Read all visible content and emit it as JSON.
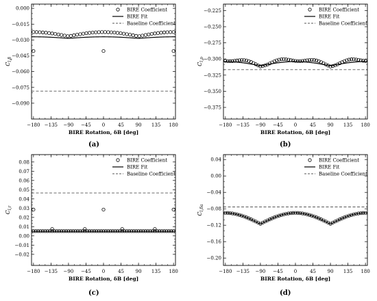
{
  "legend_entries": [
    "BIRE Coefficient",
    "BIRE Fit",
    "Baseline Coefficient"
  ],
  "colors": {
    "markers": "#000000",
    "fit": "#000000",
    "baseline": "#555555",
    "background": "#ffffff"
  },
  "chart_data": [
    {
      "type": "scatter",
      "caption": "(a)",
      "xlabel": "BIRE Rotation, δB [deg]",
      "ylabel": "C_{l,β}",
      "xlim": [
        -185,
        185
      ],
      "ylim": [
        -0.105,
        0.004
      ],
      "xticks": [
        -180,
        -135,
        -90,
        -45,
        0,
        45,
        90,
        135,
        180
      ],
      "xtick_labels": [
        "−180",
        "−135",
        "−90",
        "−45",
        "0",
        "45",
        "90",
        "135",
        "180"
      ],
      "yticks": [
        0.0,
        -0.015,
        -0.03,
        -0.045,
        -0.06,
        -0.075,
        -0.09
      ],
      "ytick_labels": [
        "0.000",
        "−0.015",
        "−0.030",
        "−0.045",
        "−0.060",
        "−0.075",
        "−0.090"
      ],
      "legend": "top-right",
      "grid": false,
      "series": [
        {
          "name": "BIRE Coefficient",
          "kind": "markers",
          "model": {
            "form": "mean_plus_amp_abs_cos",
            "mean": -0.0265,
            "amp": 0.004,
            "step": 8
          },
          "outliers": [
            [
              -180,
              -0.0405
            ],
            [
              0,
              -0.0405
            ],
            [
              180,
              -0.0405
            ]
          ]
        },
        {
          "name": "BIRE Fit",
          "kind": "line",
          "model": {
            "form": "mean_plus_amp_abs_cos",
            "mean": -0.0285,
            "amp": 0.0015
          }
        },
        {
          "name": "Baseline Coefficient",
          "kind": "dashed",
          "value": -0.0785
        }
      ]
    },
    {
      "type": "scatter",
      "caption": "(b)",
      "xlabel": "BIRE Rotation, δB [deg]",
      "ylabel": "C_{l,p}",
      "xlim": [
        -185,
        185
      ],
      "ylim": [
        -0.393,
        -0.215
      ],
      "xticks": [
        -180,
        -135,
        -90,
        -45,
        0,
        45,
        90,
        135,
        180
      ],
      "xtick_labels": [
        "−180",
        "−135",
        "−90",
        "−45",
        "0",
        "45",
        "90",
        "135",
        "180"
      ],
      "yticks": [
        -0.225,
        -0.25,
        -0.275,
        -0.3,
        -0.325,
        -0.35,
        -0.375
      ],
      "ytick_labels": [
        "−0.225",
        "−0.250",
        "−0.275",
        "−0.300",
        "−0.325",
        "−0.350",
        "−0.375"
      ],
      "legend": "top-right",
      "grid": false,
      "series": [
        {
          "name": "BIRE Coefficient",
          "kind": "markers",
          "model": {
            "form": "mean_plus_amp_abs_cos",
            "mean": -0.3095,
            "amp": 0.0085,
            "step": 6,
            "jitter": 0.0025
          }
        },
        {
          "name": "BIRE Fit",
          "kind": "line",
          "model": {
            "form": "mean_plus_amp_abs_cos",
            "mean": -0.3105,
            "amp": 0.0065
          }
        },
        {
          "name": "Baseline Coefficient",
          "kind": "dashed",
          "value": -0.3165
        }
      ]
    },
    {
      "type": "scatter",
      "caption": "(c)",
      "xlabel": "BIRE Rotation, δB [deg]",
      "ylabel": "C_{l,r}",
      "xlim": [
        -185,
        185
      ],
      "ylim": [
        -0.032,
        0.088
      ],
      "xticks": [
        -180,
        -135,
        -90,
        -45,
        0,
        45,
        90,
        135,
        180
      ],
      "xtick_labels": [
        "−180",
        "−135",
        "−90",
        "−45",
        "0",
        "45",
        "90",
        "135",
        "180"
      ],
      "yticks": [
        0.08,
        0.07,
        0.06,
        0.05,
        0.04,
        0.03,
        0.02,
        0.01,
        0.0,
        -0.01,
        -0.02
      ],
      "ytick_labels": [
        "0.08",
        "0.07",
        "0.06",
        "0.05",
        "0.04",
        "0.03",
        "0.02",
        "0.01",
        "0.00",
        "−0.01",
        "−0.02"
      ],
      "legend": "top-right",
      "grid": false,
      "series": [
        {
          "name": "BIRE Coefficient",
          "kind": "markers",
          "model": {
            "form": "constant",
            "mean": 0.0052,
            "step": 6
          },
          "outliers": [
            [
              -180,
              0.0285
            ],
            [
              0,
              0.0285
            ],
            [
              180,
              0.0285
            ],
            [
              -132,
              0.0075
            ],
            [
              -48,
              0.0075
            ],
            [
              48,
              0.0075
            ],
            [
              132,
              0.0075
            ]
          ]
        },
        {
          "name": "BIRE Fit",
          "kind": "line",
          "model": {
            "form": "constant",
            "mean": 0.005
          }
        },
        {
          "name": "Baseline Coefficient",
          "kind": "dashed",
          "value": 0.0465
        }
      ]
    },
    {
      "type": "scatter",
      "caption": "(d)",
      "xlabel": "BIRE Rotation, δB [deg]",
      "ylabel": "C_{l,δa}",
      "xlim": [
        -185,
        185
      ],
      "ylim": [
        -0.218,
        0.052
      ],
      "xticks": [
        -180,
        -135,
        -90,
        -45,
        0,
        45,
        90,
        135,
        180
      ],
      "xtick_labels": [
        "−180",
        "−135",
        "−90",
        "−45",
        "0",
        "45",
        "90",
        "135",
        "180"
      ],
      "yticks": [
        0.04,
        0.0,
        -0.04,
        -0.08,
        -0.12,
        -0.16,
        -0.2
      ],
      "ytick_labels": [
        "0.04",
        "0.00",
        "−0.04",
        "−0.08",
        "−0.12",
        "−0.16",
        "−0.20"
      ],
      "legend": "top-right",
      "grid": false,
      "series": [
        {
          "name": "BIRE Coefficient",
          "kind": "markers",
          "model": {
            "form": "mean_plus_amp_abs_cos",
            "mean": -0.1165,
            "amp": 0.0265,
            "step": 6
          }
        },
        {
          "name": "BIRE Fit",
          "kind": "line",
          "model": {
            "form": "mean_plus_amp_abs_cos",
            "mean": -0.117,
            "amp": 0.027
          }
        },
        {
          "name": "Baseline Coefficient",
          "kind": "dashed",
          "value": -0.0755
        }
      ]
    }
  ]
}
